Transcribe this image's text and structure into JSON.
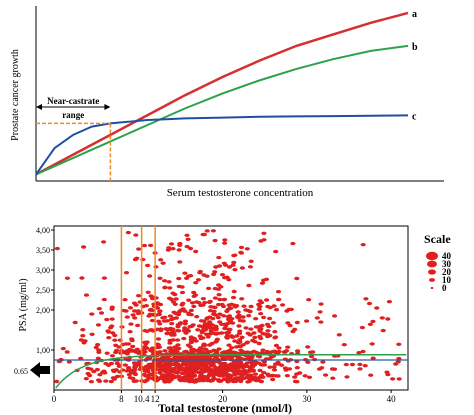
{
  "chart_data": [
    {
      "type": "line",
      "xlabel": "Serum testosterone concentration",
      "ylabel": "Prostate cancer growth",
      "x": [
        0,
        0.05,
        0.1,
        0.15,
        0.2,
        0.25,
        0.3,
        0.35,
        0.4,
        0.5,
        0.6,
        0.7,
        0.8,
        0.9,
        1.0
      ],
      "series": [
        {
          "name": "a",
          "color": "#d62f2f",
          "values": [
            0.04,
            0.1,
            0.16,
            0.22,
            0.28,
            0.34,
            0.4,
            0.46,
            0.52,
            0.63,
            0.73,
            0.82,
            0.89,
            0.96,
            1.02
          ]
        },
        {
          "name": "b",
          "color": "#2ca24c",
          "values": [
            0.04,
            0.09,
            0.14,
            0.19,
            0.24,
            0.29,
            0.34,
            0.39,
            0.44,
            0.53,
            0.61,
            0.68,
            0.74,
            0.79,
            0.82
          ]
        },
        {
          "name": "c",
          "color": "#1f4fa0",
          "values": [
            0.04,
            0.2,
            0.28,
            0.33,
            0.35,
            0.36,
            0.37,
            0.375,
            0.38,
            0.385,
            0.39,
            0.392,
            0.394,
            0.396,
            0.398
          ]
        }
      ],
      "annotation": {
        "text_line1": "Near-castrate",
        "text_line2": "range",
        "range_end_x": 0.2,
        "level_y": 0.35,
        "color": "#f08a24"
      },
      "xlim": [
        0,
        1
      ],
      "ylim": [
        0,
        1.05
      ]
    },
    {
      "type": "scatter",
      "xlabel": "Total testosterone (nmol/l)",
      "ylabel": "PSA (mg/ml)",
      "x_ticks": [
        "0",
        "8",
        "10.4",
        "12",
        "20",
        "30",
        "40"
      ],
      "x_tick_values": [
        0,
        8,
        10.4,
        12,
        20,
        30,
        40
      ],
      "y_ticks": [
        "0.65",
        "1,00",
        "2,00",
        "2,50",
        "3,00",
        "3,50",
        "4,00"
      ],
      "y_tick_values": [
        0.65,
        1.0,
        2.0,
        2.5,
        3.0,
        3.5,
        4.0
      ],
      "xlim": [
        0,
        42
      ],
      "ylim": [
        0,
        4.1
      ],
      "vertical_lines": [
        8,
        10.4,
        12
      ],
      "horizontal_line": 0.75,
      "arrow_value": 0.65,
      "legend_title": "Scale",
      "legend_entries": [
        "40",
        "30",
        "20",
        "10",
        "0"
      ],
      "point_color": "#e02020",
      "curve_color": "#2ca24c",
      "hline_color": "#2a5a9a",
      "vline_color": "#f08a24"
    }
  ]
}
